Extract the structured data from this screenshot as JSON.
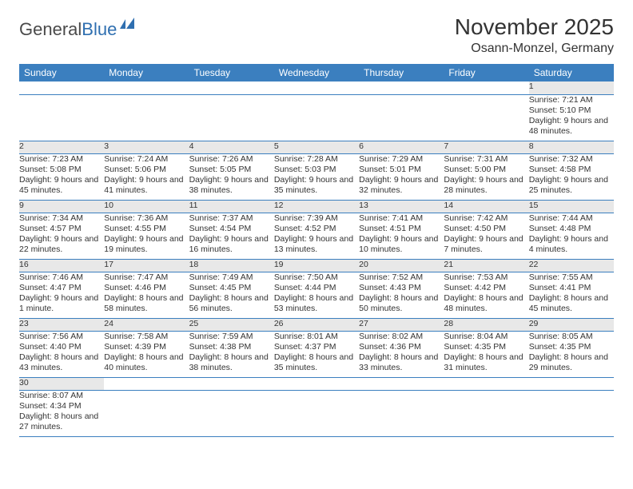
{
  "logo": {
    "text1": "General",
    "text2": "Blue",
    "flag_color": "#2f6fb0"
  },
  "title": "November 2025",
  "location": "Osann-Monzel, Germany",
  "colors": {
    "header_bg": "#3b7fbf",
    "header_fg": "#ffffff",
    "daynum_bg": "#e8e8e8",
    "rule": "#3b7fbf"
  },
  "weekdays": [
    "Sunday",
    "Monday",
    "Tuesday",
    "Wednesday",
    "Thursday",
    "Friday",
    "Saturday"
  ],
  "weeks": [
    [
      null,
      null,
      null,
      null,
      null,
      null,
      {
        "d": "1",
        "sr": "7:21 AM",
        "ss": "5:10 PM",
        "dl": "9 hours and 48 minutes."
      }
    ],
    [
      {
        "d": "2",
        "sr": "7:23 AM",
        "ss": "5:08 PM",
        "dl": "9 hours and 45 minutes."
      },
      {
        "d": "3",
        "sr": "7:24 AM",
        "ss": "5:06 PM",
        "dl": "9 hours and 41 minutes."
      },
      {
        "d": "4",
        "sr": "7:26 AM",
        "ss": "5:05 PM",
        "dl": "9 hours and 38 minutes."
      },
      {
        "d": "5",
        "sr": "7:28 AM",
        "ss": "5:03 PM",
        "dl": "9 hours and 35 minutes."
      },
      {
        "d": "6",
        "sr": "7:29 AM",
        "ss": "5:01 PM",
        "dl": "9 hours and 32 minutes."
      },
      {
        "d": "7",
        "sr": "7:31 AM",
        "ss": "5:00 PM",
        "dl": "9 hours and 28 minutes."
      },
      {
        "d": "8",
        "sr": "7:32 AM",
        "ss": "4:58 PM",
        "dl": "9 hours and 25 minutes."
      }
    ],
    [
      {
        "d": "9",
        "sr": "7:34 AM",
        "ss": "4:57 PM",
        "dl": "9 hours and 22 minutes."
      },
      {
        "d": "10",
        "sr": "7:36 AM",
        "ss": "4:55 PM",
        "dl": "9 hours and 19 minutes."
      },
      {
        "d": "11",
        "sr": "7:37 AM",
        "ss": "4:54 PM",
        "dl": "9 hours and 16 minutes."
      },
      {
        "d": "12",
        "sr": "7:39 AM",
        "ss": "4:52 PM",
        "dl": "9 hours and 13 minutes."
      },
      {
        "d": "13",
        "sr": "7:41 AM",
        "ss": "4:51 PM",
        "dl": "9 hours and 10 minutes."
      },
      {
        "d": "14",
        "sr": "7:42 AM",
        "ss": "4:50 PM",
        "dl": "9 hours and 7 minutes."
      },
      {
        "d": "15",
        "sr": "7:44 AM",
        "ss": "4:48 PM",
        "dl": "9 hours and 4 minutes."
      }
    ],
    [
      {
        "d": "16",
        "sr": "7:46 AM",
        "ss": "4:47 PM",
        "dl": "9 hours and 1 minute."
      },
      {
        "d": "17",
        "sr": "7:47 AM",
        "ss": "4:46 PM",
        "dl": "8 hours and 58 minutes."
      },
      {
        "d": "18",
        "sr": "7:49 AM",
        "ss": "4:45 PM",
        "dl": "8 hours and 56 minutes."
      },
      {
        "d": "19",
        "sr": "7:50 AM",
        "ss": "4:44 PM",
        "dl": "8 hours and 53 minutes."
      },
      {
        "d": "20",
        "sr": "7:52 AM",
        "ss": "4:43 PM",
        "dl": "8 hours and 50 minutes."
      },
      {
        "d": "21",
        "sr": "7:53 AM",
        "ss": "4:42 PM",
        "dl": "8 hours and 48 minutes."
      },
      {
        "d": "22",
        "sr": "7:55 AM",
        "ss": "4:41 PM",
        "dl": "8 hours and 45 minutes."
      }
    ],
    [
      {
        "d": "23",
        "sr": "7:56 AM",
        "ss": "4:40 PM",
        "dl": "8 hours and 43 minutes."
      },
      {
        "d": "24",
        "sr": "7:58 AM",
        "ss": "4:39 PM",
        "dl": "8 hours and 40 minutes."
      },
      {
        "d": "25",
        "sr": "7:59 AM",
        "ss": "4:38 PM",
        "dl": "8 hours and 38 minutes."
      },
      {
        "d": "26",
        "sr": "8:01 AM",
        "ss": "4:37 PM",
        "dl": "8 hours and 35 minutes."
      },
      {
        "d": "27",
        "sr": "8:02 AM",
        "ss": "4:36 PM",
        "dl": "8 hours and 33 minutes."
      },
      {
        "d": "28",
        "sr": "8:04 AM",
        "ss": "4:35 PM",
        "dl": "8 hours and 31 minutes."
      },
      {
        "d": "29",
        "sr": "8:05 AM",
        "ss": "4:35 PM",
        "dl": "8 hours and 29 minutes."
      }
    ],
    [
      {
        "d": "30",
        "sr": "8:07 AM",
        "ss": "4:34 PM",
        "dl": "8 hours and 27 minutes."
      },
      null,
      null,
      null,
      null,
      null,
      null
    ]
  ],
  "labels": {
    "sunrise": "Sunrise:",
    "sunset": "Sunset:",
    "daylight": "Daylight:"
  }
}
